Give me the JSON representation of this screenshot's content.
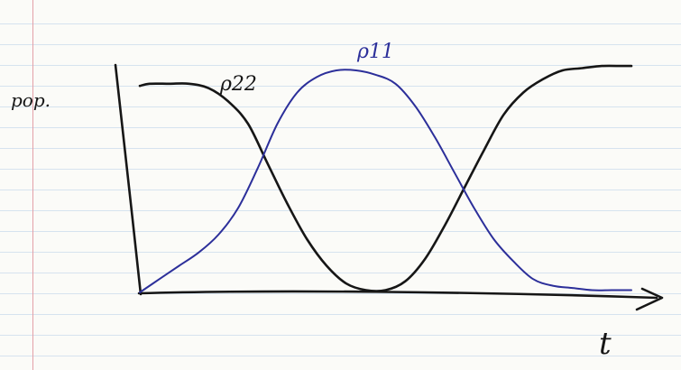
{
  "chart_data": {
    "type": "line",
    "ylabel": "pop.",
    "xlabel": "t",
    "xlim": [
      0,
      1
    ],
    "ylim": [
      0,
      1
    ],
    "grid": false,
    "series": [
      {
        "name": "ρ22",
        "color": "#161616",
        "x": [
          0,
          0.02,
          0.06,
          0.1,
          0.14,
          0.18,
          0.22,
          0.26,
          0.3,
          0.34,
          0.38,
          0.42,
          0.46,
          0.5,
          0.54,
          0.58,
          0.62,
          0.66,
          0.7,
          0.74,
          0.78,
          0.82,
          0.86,
          0.9,
          0.94,
          0.98,
          1.0
        ],
        "y": [
          0.93,
          0.94,
          0.94,
          0.94,
          0.92,
          0.86,
          0.76,
          0.58,
          0.4,
          0.24,
          0.12,
          0.04,
          0.01,
          0.01,
          0.05,
          0.15,
          0.3,
          0.47,
          0.64,
          0.8,
          0.9,
          0.96,
          1.0,
          1.01,
          1.02,
          1.02,
          1.02
        ]
      },
      {
        "name": "ρ11",
        "color": "#2c2f9a",
        "x": [
          0,
          0.04,
          0.08,
          0.12,
          0.16,
          0.2,
          0.24,
          0.28,
          0.32,
          0.36,
          0.4,
          0.44,
          0.48,
          0.52,
          0.56,
          0.6,
          0.64,
          0.68,
          0.72,
          0.76,
          0.8,
          0.84,
          0.88,
          0.92,
          0.96,
          1.0
        ],
        "y": [
          0.0,
          0.06,
          0.12,
          0.18,
          0.26,
          0.38,
          0.56,
          0.76,
          0.9,
          0.97,
          1.0,
          1.0,
          0.98,
          0.94,
          0.84,
          0.7,
          0.54,
          0.38,
          0.24,
          0.14,
          0.06,
          0.03,
          0.02,
          0.01,
          0.01,
          0.01
        ]
      }
    ]
  }
}
